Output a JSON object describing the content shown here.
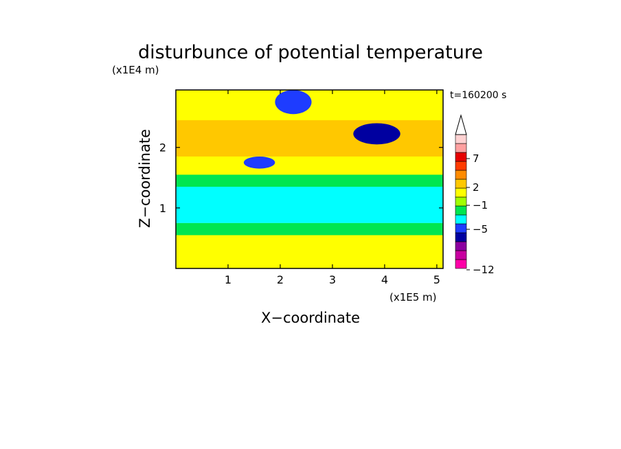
{
  "chart_data": {
    "type": "heatmap",
    "title": "disturbunce of potential temperature",
    "xlabel": "X−coordinate",
    "ylabel": "Z−coordinate",
    "x_unit": "(x1E5 m)",
    "y_unit": "(x1E4 m)",
    "time_label": "t=160200 s",
    "xlim": [
      0,
      5.12
    ],
    "ylim": [
      0,
      2.95
    ],
    "x_ticks": [
      "1",
      "2",
      "3",
      "4",
      "5"
    ],
    "y_ticks": [
      "1",
      "2"
    ],
    "x_tick_values": [
      1,
      2,
      3,
      4,
      5
    ],
    "y_tick_values": [
      1,
      2
    ],
    "colorbar": {
      "labels": [
        "7",
        "2",
        "−1",
        "−5",
        "−12"
      ],
      "colors": [
        "#ff00a8",
        "#c800a0",
        "#8c00a0",
        "#0000a0",
        "#1e3cff",
        "#00ffff",
        "#00e650",
        "#a0ff00",
        "#ffff00",
        "#ffc800",
        "#ff8c00",
        "#ff3c00",
        "#e60000",
        "#ffa0a0",
        "#ffd2d2"
      ],
      "extend": "max"
    },
    "regions": [
      {
        "x": [
          0.0,
          5.12
        ],
        "z": [
          0.0,
          0.55
        ],
        "level": "yellow"
      },
      {
        "x": [
          0.0,
          5.12
        ],
        "z": [
          0.55,
          0.75
        ],
        "level": "green"
      },
      {
        "x": [
          0.0,
          5.12
        ],
        "z": [
          0.75,
          1.35
        ],
        "level": "cyan"
      },
      {
        "x": [
          0.0,
          5.12
        ],
        "z": [
          1.35,
          1.55
        ],
        "level": "green"
      },
      {
        "x": [
          0.0,
          5.12
        ],
        "z": [
          1.55,
          1.85
        ],
        "level": "yellow"
      },
      {
        "x": [
          0.0,
          5.12
        ],
        "z": [
          1.85,
          2.45
        ],
        "level": "orange"
      },
      {
        "x": [
          0.0,
          5.12
        ],
        "z": [
          2.45,
          2.95
        ],
        "level": "yellow"
      },
      {
        "x": [
          1.9,
          2.6
        ],
        "z": [
          2.55,
          2.95
        ],
        "level": "blue"
      },
      {
        "x": [
          3.4,
          4.3
        ],
        "z": [
          2.05,
          2.4
        ],
        "level": "navy"
      },
      {
        "x": [
          1.3,
          1.9
        ],
        "z": [
          1.65,
          1.85
        ],
        "level": "blue"
      }
    ]
  }
}
